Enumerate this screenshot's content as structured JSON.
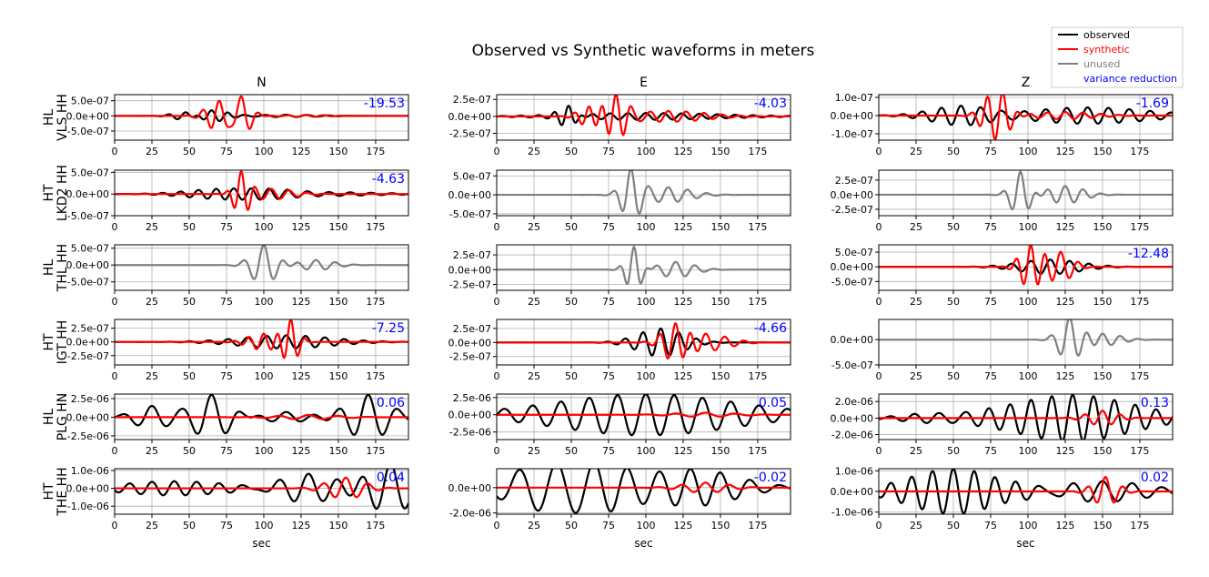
{
  "title": "Observed vs Synthetic waveforms in meters",
  "colors": {
    "observed": "#000000",
    "synthetic": "#ff0000",
    "unused": "#808080",
    "variance_reduction": "#0000ff",
    "grid": "#b0b0b0"
  },
  "legend": {
    "placement": "top-right",
    "items": [
      {
        "label": "observed",
        "color": "#000000",
        "line": true
      },
      {
        "label": "synthetic",
        "color": "#ff0000",
        "line": true
      },
      {
        "label": "unused",
        "color": "#808080",
        "line": true
      },
      {
        "label": "variance reduction",
        "color": "#0000ff",
        "line": false
      }
    ]
  },
  "chart_data": {
    "type": "line",
    "title": "Observed vs Synthetic waveforms in meters",
    "xlabel": "sec",
    "xlim": [
      0,
      197
    ],
    "xticks": [
      0,
      25,
      50,
      75,
      100,
      125,
      150,
      175
    ],
    "grid": true,
    "columns": [
      "N",
      "E",
      "Z"
    ],
    "rows": [
      {
        "network": "HL",
        "station": "VLS HH"
      },
      {
        "network": "HT",
        "station": "LKD2 HH"
      },
      {
        "network": "HL",
        "station": "THL HH"
      },
      {
        "network": "HT",
        "station": "IGT HH"
      },
      {
        "network": "HL",
        "station": "PLG HN"
      },
      {
        "network": "HT",
        "station": "THE HH"
      }
    ],
    "panels": [
      [
        {
          "used": true,
          "vr": "-19.53",
          "ylim": [
            -8e-07,
            7e-07
          ],
          "yticks": [
            5e-07,
            0,
            -5e-07
          ],
          "ytick_labels": [
            "5.0e-07",
            "0.0e+00",
            "-5.0e-07"
          ],
          "observed": [
            {
              "c": 48,
              "a": 1.6e-07,
              "w": 8,
              "p": 12
            },
            {
              "c": 65,
              "a": 2e-07,
              "w": 10,
              "p": 11
            },
            {
              "c": 115,
              "a": 4e-08,
              "w": 20,
              "p": 14
            }
          ],
          "synthetic": [
            {
              "c": 70,
              "a": 5e-07,
              "w": 8,
              "p": 11
            },
            {
              "c": 85,
              "a": 7e-07,
              "w": 6,
              "p": 12
            },
            {
              "c": 128,
              "a": 3e-08,
              "w": 15,
              "p": 12
            }
          ]
        },
        {
          "used": true,
          "vr": "-4.03",
          "ylim": [
            -3.5e-07,
            3.2e-07
          ],
          "yticks": [
            2.5e-07,
            0,
            -2.5e-07
          ],
          "ytick_labels": [
            "2.5e-07",
            "0.0e+00",
            "-2.5e-07"
          ],
          "observed": [
            {
              "c": 48,
              "a": 1.7e-07,
              "w": 6,
              "p": 10
            },
            {
              "c": 100,
              "a": 5e-08,
              "w": 50,
              "p": 12
            }
          ],
          "synthetic": [
            {
              "c": 62,
              "a": 1.5e-07,
              "w": 7,
              "p": 10
            },
            {
              "c": 80,
              "a": 3e-07,
              "w": 7,
              "p": 10
            },
            {
              "c": 115,
              "a": 8e-08,
              "w": 25,
              "p": 12
            }
          ]
        },
        {
          "used": true,
          "vr": "-1.69",
          "ylim": [
            -1.35e-07,
            1.15e-07
          ],
          "yticks": [
            1e-07,
            0,
            -1e-07
          ],
          "ytick_labels": [
            "1.0e-07",
            "0.0e+00",
            "-1.0e-07"
          ],
          "observed": [
            {
              "c": 55,
              "a": 5e-08,
              "w": 20,
              "p": 13
            },
            {
              "c": 140,
              "a": 4.5e-08,
              "w": 40,
              "p": 14
            }
          ],
          "synthetic": [
            {
              "c": 73,
              "a": 8e-08,
              "w": 6,
              "p": 11
            },
            {
              "c": 83,
              "a": 1.15e-07,
              "w": 6,
              "p": 11
            },
            {
              "c": 125,
              "a": 2e-08,
              "w": 20,
              "p": 12
            }
          ]
        }
      ],
      [
        {
          "used": true,
          "vr": "-4.63",
          "ylim": [
            -5e-07,
            5.5e-07
          ],
          "yticks": [
            5e-07,
            0,
            -5e-07
          ],
          "ytick_labels": [
            "5.0e-07",
            "0.0e+00",
            "-5.0e-07"
          ],
          "observed": [
            {
              "c": 80,
              "a": 1.5e-07,
              "w": 25,
              "p": 12
            },
            {
              "c": 130,
              "a": 5e-08,
              "w": 40,
              "p": 14
            }
          ],
          "synthetic": [
            {
              "c": 85,
              "a": 5.5e-07,
              "w": 5,
              "p": 10
            },
            {
              "c": 105,
              "a": 1.2e-07,
              "w": 15,
              "p": 12
            }
          ]
        },
        {
          "used": false,
          "vr": "",
          "ylim": [
            -5.5e-07,
            6.5e-07
          ],
          "yticks": [
            5e-07,
            0,
            -5e-07
          ],
          "ytick_labels": [
            "5.0e-07",
            "0.0e+00",
            "-5.0e-07"
          ],
          "observed": [
            {
              "c": 90,
              "a": 6.5e-07,
              "w": 6,
              "p": 12
            },
            {
              "c": 115,
              "a": 2e-07,
              "w": 15,
              "p": 13
            }
          ],
          "synthetic": []
        },
        {
          "used": false,
          "vr": "",
          "ylim": [
            -3.6e-07,
            4.2e-07
          ],
          "yticks": [
            2.5e-07,
            0,
            -2.5e-07
          ],
          "ytick_labels": [
            "2.5e-07",
            "0.0e+00",
            "-2.5e-07"
          ],
          "observed": [
            {
              "c": 95,
              "a": 4e-07,
              "w": 6,
              "p": 12
            },
            {
              "c": 125,
              "a": 1.5e-07,
              "w": 12,
              "p": 12
            }
          ],
          "synthetic": []
        }
      ],
      [
        {
          "used": false,
          "vr": "",
          "ylim": [
            -7.5e-07,
            6e-07
          ],
          "yticks": [
            5e-07,
            0,
            -5e-07
          ],
          "ytick_labels": [
            "5.0e-07",
            "0.0e+00",
            "-5.0e-07"
          ],
          "observed": [
            {
              "c": 100,
              "a": 6e-07,
              "w": 8,
              "p": 14
            },
            {
              "c": 135,
              "a": 1.5e-07,
              "w": 12,
              "p": 13
            }
          ],
          "synthetic": []
        },
        {
          "used": false,
          "vr": "",
          "ylim": [
            -3.5e-07,
            4.2e-07
          ],
          "yticks": [
            2.5e-07,
            0,
            -2.5e-07
          ],
          "ytick_labels": [
            "2.5e-07",
            "0.0e+00",
            "-2.5e-07"
          ],
          "observed": [
            {
              "c": 92,
              "a": 3.8e-07,
              "w": 5,
              "p": 10
            },
            {
              "c": 120,
              "a": 1.3e-07,
              "w": 12,
              "p": 13
            }
          ],
          "synthetic": []
        },
        {
          "used": true,
          "vr": "-12.48",
          "ylim": [
            -8e-07,
            7.5e-07
          ],
          "yticks": [
            5e-07,
            0,
            -5e-07
          ],
          "ytick_labels": [
            "5.0e-07",
            "0.0e+00",
            "-5.0e-07"
          ],
          "observed": [
            {
              "c": 115,
              "a": 2.5e-07,
              "w": 20,
              "p": 13
            }
          ],
          "synthetic": [
            {
              "c": 102,
              "a": 7.5e-07,
              "w": 7,
              "p": 10
            },
            {
              "c": 122,
              "a": 5e-07,
              "w": 8,
              "p": 12
            }
          ]
        }
      ],
      [
        {
          "used": true,
          "vr": "-7.25",
          "ylim": [
            -4.2e-07,
            4.1e-07
          ],
          "yticks": [
            2.5e-07,
            0,
            -2.5e-07
          ],
          "ytick_labels": [
            "2.5e-07",
            "0.0e+00",
            "-2.5e-07"
          ],
          "observed": [
            {
              "c": 115,
              "a": 1.2e-07,
              "w": 30,
              "p": 13
            }
          ],
          "synthetic": [
            {
              "c": 118,
              "a": 4e-07,
              "w": 5,
              "p": 10
            },
            {
              "c": 100,
              "a": 1.5e-07,
              "w": 10,
              "p": 10
            }
          ]
        },
        {
          "used": true,
          "vr": "-4.66",
          "ylim": [
            -4e-07,
            4.1e-07
          ],
          "yticks": [
            2.5e-07,
            0,
            -2.5e-07
          ],
          "ytick_labels": [
            "2.5e-07",
            "0.0e+00",
            "-2.5e-07"
          ],
          "observed": [
            {
              "c": 110,
              "a": 2.5e-07,
              "w": 15,
              "p": 12
            }
          ],
          "synthetic": [
            {
              "c": 120,
              "a": 4e-07,
              "w": 8,
              "p": 11
            },
            {
              "c": 140,
              "a": 1.5e-07,
              "w": 15,
              "p": 13
            }
          ]
        },
        {
          "used": false,
          "vr": "",
          "ylim": [
            -5e-07,
            4e-07
          ],
          "yticks": [
            0,
            -5e-07
          ],
          "ytick_labels": [
            "0.0e+00",
            "-5.0e-07"
          ],
          "observed": [
            {
              "c": 128,
              "a": 4.3e-07,
              "w": 7,
              "p": 13
            },
            {
              "c": 150,
              "a": 1.2e-07,
              "w": 12,
              "p": 12
            }
          ],
          "synthetic": []
        }
      ],
      [
        {
          "used": true,
          "vr": "0.06",
          "ylim": [
            -3e-06,
            3.1e-06
          ],
          "yticks": [
            2.5e-06,
            0,
            -2.5e-06
          ],
          "ytick_labels": [
            "2.5e-06",
            "0.0e+00",
            "-2.5e-06"
          ],
          "observed": [
            {
              "c": 65,
              "a": 3e-06,
              "w": 12,
              "p": 20
            },
            {
              "c": 170,
              "a": 3e-06,
              "w": 14,
              "p": 20
            },
            {
              "c": 25,
              "a": 1.5e-06,
              "w": 12,
              "p": 20
            },
            {
              "c": 115,
              "a": 7e-07,
              "w": 15,
              "p": 20
            }
          ],
          "synthetic": [
            {
              "c": 130,
              "a": 3e-07,
              "w": 20,
              "p": 20
            }
          ]
        },
        {
          "used": true,
          "vr": "0.05",
          "ylim": [
            -3.6e-06,
            3e-06
          ],
          "yticks": [
            2.5e-06,
            0,
            -2.5e-06
          ],
          "ytick_labels": [
            "2.5e-06",
            "0.0e+00",
            "-2.5e-06"
          ],
          "observed": [
            {
              "c": 100,
              "a": 3e-06,
              "w": 60,
              "p": 19
            }
          ],
          "synthetic": [
            {
              "c": 140,
              "a": 3e-07,
              "w": 20,
              "p": 20
            }
          ]
        },
        {
          "used": true,
          "vr": "0.13",
          "ylim": [
            -2.6e-06,
            2.9e-06
          ],
          "yticks": [
            2e-06,
            0,
            -2e-06
          ],
          "ytick_labels": [
            "2.0e-06",
            "0.0e+00",
            "-2.0e-06"
          ],
          "observed": [
            {
              "c": 130,
              "a": 2.8e-06,
              "w": 40,
              "p": 14
            },
            {
              "c": 40,
              "a": 8e-07,
              "w": 20,
              "p": 16
            }
          ],
          "synthetic": [
            {
              "c": 150,
              "a": 9e-07,
              "w": 10,
              "p": 12
            }
          ]
        }
      ],
      [
        {
          "used": true,
          "vr": "0.04",
          "ylim": [
            -1.45e-06,
            1.1e-06
          ],
          "yticks": [
            1e-06,
            0,
            -1e-06
          ],
          "ytick_labels": [
            "1.0e-06",
            "0.0e+00",
            "-1.0e-06"
          ],
          "observed": [
            {
              "c": 185,
              "a": 1.4e-06,
              "w": 15,
              "p": 20
            },
            {
              "c": 130,
              "a": 8e-07,
              "w": 20,
              "p": 20
            },
            {
              "c": 40,
              "a": 4e-07,
              "w": 35,
              "p": 15
            }
          ],
          "synthetic": [
            {
              "c": 155,
              "a": 6e-07,
              "w": 12,
              "p": 15
            }
          ]
        },
        {
          "used": true,
          "vr": "-0.02",
          "ylim": [
            -2.1e-06,
            1.5e-06
          ],
          "yticks": [
            0,
            -2e-06
          ],
          "ytick_labels": [
            "0.0e+00",
            "-2.0e-06"
          ],
          "observed": [
            {
              "c": 40,
              "a": 2e-06,
              "w": 30,
              "p": 25
            },
            {
              "c": 130,
              "a": 1.5e-06,
              "w": 30,
              "p": 20
            },
            {
              "c": 85,
              "a": 1e-06,
              "w": 20,
              "p": 20
            }
          ],
          "synthetic": [
            {
              "c": 140,
              "a": 4e-07,
              "w": 15,
              "p": 16
            }
          ]
        },
        {
          "used": true,
          "vr": "0.02",
          "ylim": [
            -1.1e-06,
            1.1e-06
          ],
          "yticks": [
            1e-06,
            0,
            -1e-06
          ],
          "ytick_labels": [
            "1.0e-06",
            "0.0e+00",
            "-1.0e-06"
          ],
          "observed": [
            {
              "c": 50,
              "a": 1.1e-06,
              "w": 30,
              "p": 14
            },
            {
              "c": 150,
              "a": 5e-07,
              "w": 30,
              "p": 20
            }
          ],
          "synthetic": [
            {
              "c": 152,
              "a": 7e-07,
              "w": 8,
              "p": 12
            }
          ]
        }
      ]
    ]
  }
}
